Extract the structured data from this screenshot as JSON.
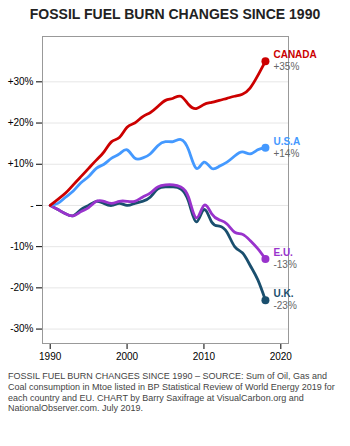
{
  "chart_data": {
    "type": "line",
    "title": "FOSSIL FUEL BURN CHANGES SINCE 1990",
    "caption": "FOSSIL FUEL BURN CHANGES SINCE 1990 – SOURCE: Sum of Oil, Gas and Coal consumption in Mtoe listed in BP Statistical Review of World Energy 2019 for each country and EU. CHART by Barry Saxifrage at VisualCarbon.org and NationalObserver.com. July 2019.",
    "x": [
      1990,
      1991,
      1992,
      1993,
      1994,
      1995,
      1996,
      1997,
      1998,
      1999,
      2000,
      2001,
      2002,
      2003,
      2004,
      2005,
      2006,
      2007,
      2008,
      2009,
      2010,
      2011,
      2012,
      2013,
      2014,
      2015,
      2016,
      2017,
      2018
    ],
    "series": [
      {
        "name": "U.K.",
        "color": "#1a4f6e",
        "values": [
          0.0,
          -0.01,
          -0.02,
          -0.025,
          -0.01,
          0.0,
          0.01,
          0.005,
          0.0,
          0.005,
          0.0,
          0.005,
          0.01,
          0.02,
          0.04,
          0.045,
          0.045,
          0.04,
          0.01,
          -0.04,
          -0.01,
          -0.04,
          -0.05,
          -0.065,
          -0.1,
          -0.115,
          -0.145,
          -0.18,
          -0.23
        ],
        "value_labels": [
          null,
          null,
          null,
          null,
          null,
          null,
          null,
          null,
          null,
          null,
          null,
          null,
          null,
          null,
          null,
          null,
          null,
          null,
          null,
          null,
          null,
          null,
          null,
          null,
          null,
          null,
          null,
          null,
          "-23%"
        ]
      },
      {
        "name": "E.U.",
        "color": "#9933cc",
        "values": [
          0.0,
          -0.01,
          -0.02,
          -0.025,
          -0.015,
          -0.005,
          0.01,
          0.01,
          0.005,
          0.01,
          0.01,
          0.01,
          0.02,
          0.03,
          0.045,
          0.05,
          0.05,
          0.045,
          0.02,
          -0.03,
          0.0,
          -0.02,
          -0.035,
          -0.045,
          -0.065,
          -0.07,
          -0.085,
          -0.105,
          -0.13
        ],
        "value_labels": [
          null,
          null,
          null,
          null,
          null,
          null,
          null,
          null,
          null,
          null,
          null,
          null,
          null,
          null,
          null,
          null,
          null,
          null,
          null,
          null,
          null,
          null,
          null,
          null,
          null,
          null,
          null,
          null,
          "-13%"
        ]
      },
      {
        "name": "U.S.A",
        "color": "#4499ff",
        "values": [
          0.0,
          0.005,
          0.02,
          0.035,
          0.055,
          0.07,
          0.09,
          0.1,
          0.115,
          0.125,
          0.135,
          0.115,
          0.115,
          0.125,
          0.145,
          0.155,
          0.155,
          0.16,
          0.135,
          0.09,
          0.105,
          0.09,
          0.095,
          0.105,
          0.12,
          0.13,
          0.125,
          0.135,
          0.14
        ],
        "value_labels": [
          null,
          null,
          null,
          null,
          null,
          null,
          null,
          null,
          null,
          null,
          null,
          null,
          null,
          null,
          null,
          null,
          null,
          null,
          null,
          null,
          null,
          null,
          null,
          null,
          null,
          null,
          null,
          null,
          "+14%"
        ]
      },
      {
        "name": "CANADA",
        "color": "#cc0000",
        "values": [
          0.0,
          0.015,
          0.03,
          0.05,
          0.07,
          0.09,
          0.11,
          0.13,
          0.155,
          0.165,
          0.19,
          0.2,
          0.215,
          0.225,
          0.24,
          0.255,
          0.26,
          0.265,
          0.245,
          0.235,
          0.245,
          0.25,
          0.255,
          0.26,
          0.265,
          0.27,
          0.285,
          0.315,
          0.35
        ],
        "value_labels": [
          null,
          null,
          null,
          null,
          null,
          null,
          null,
          null,
          null,
          null,
          null,
          null,
          null,
          null,
          null,
          null,
          null,
          null,
          null,
          null,
          null,
          null,
          null,
          null,
          null,
          null,
          null,
          null,
          "+35%"
        ]
      }
    ],
    "xlim": [
      1989,
      2021
    ],
    "xticks": [
      1990,
      2000,
      2010,
      2020
    ],
    "ylim": [
      -0.335,
      0.41
    ],
    "yticks": [
      {
        "value": -0.3,
        "label": "-30%"
      },
      {
        "value": -0.2,
        "label": "-20%"
      },
      {
        "value": -0.1,
        "label": "-10%"
      },
      {
        "value": 0.0,
        "label": "-"
      },
      {
        "value": 0.1,
        "label": "+10%"
      },
      {
        "value": 0.2,
        "label": "+20%"
      },
      {
        "value": 0.3,
        "label": "+30%"
      }
    ],
    "grid": true
  }
}
